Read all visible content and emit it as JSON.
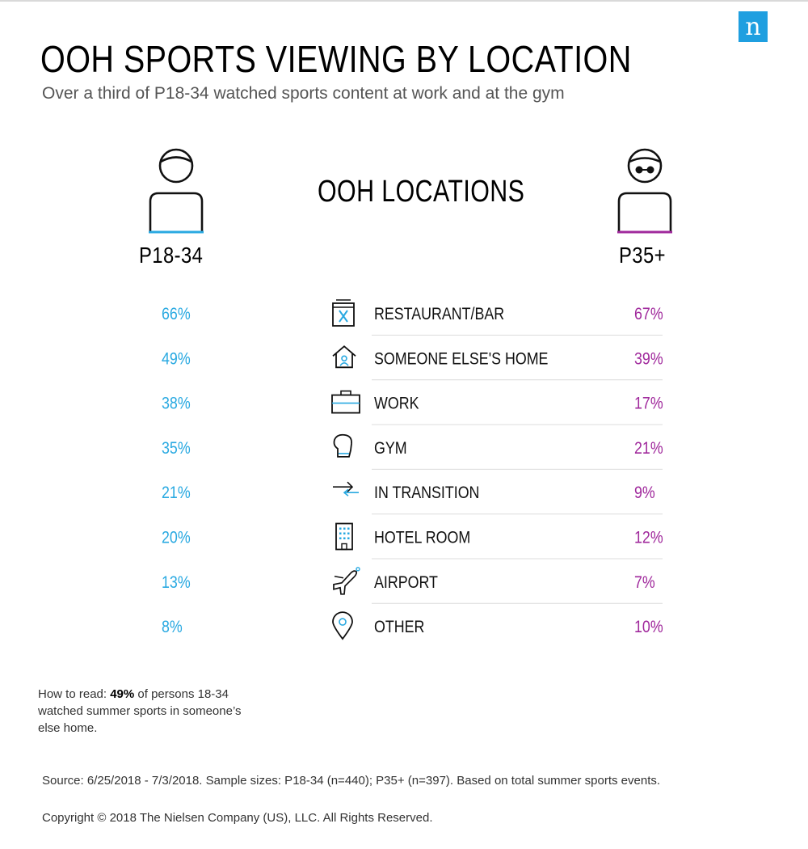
{
  "logo": {
    "letter": "n"
  },
  "header": {
    "title": "OOH SPORTS VIEWING BY LOCATION",
    "subtitle": "Over a third of P18-34 watched sports content at work and at the gym"
  },
  "colors": {
    "p18_34": "#29a9e1",
    "p35plus": "#a0299c",
    "divider": "#dcdcdc"
  },
  "chart_data": {
    "type": "table",
    "title": "OOH SPORTS VIEWING BY LOCATION",
    "column_header": "OOH LOCATIONS",
    "series": [
      {
        "name": "P18-34",
        "values": [
          "66%",
          "49%",
          "38%",
          "35%",
          "21%",
          "20%",
          "13%",
          "8%"
        ]
      },
      {
        "name": "P35+",
        "values": [
          "67%",
          "39%",
          "17%",
          "21%",
          "9%",
          "12%",
          "7%",
          "10%"
        ]
      }
    ],
    "categories": [
      "RESTAURANT/BAR",
      "SOMEONE ELSE'S HOME",
      "WORK",
      "GYM",
      "IN TRANSITION",
      "HOTEL ROOM",
      "AIRPORT",
      "OTHER"
    ],
    "icons": [
      "restaurant-icon",
      "home-icon",
      "briefcase-icon",
      "boxing-glove-icon",
      "transition-arrows-icon",
      "hotel-icon",
      "airplane-icon",
      "map-pin-icon"
    ]
  },
  "footer": {
    "how_to_read_prefix": "How to read: ",
    "how_to_read_bold": "49%",
    "how_to_read_suffix": " of persons 18-34 watched summer sports in someone’s else home.",
    "source": "Source: 6/25/2018 - 7/3/2018. Sample sizes: P18-34 (n=440); P35+ (n=397). Based on total summer sports events.",
    "copyright": "Copyright © 2018 The Nielsen Company (US), LLC. All Rights Reserved."
  }
}
